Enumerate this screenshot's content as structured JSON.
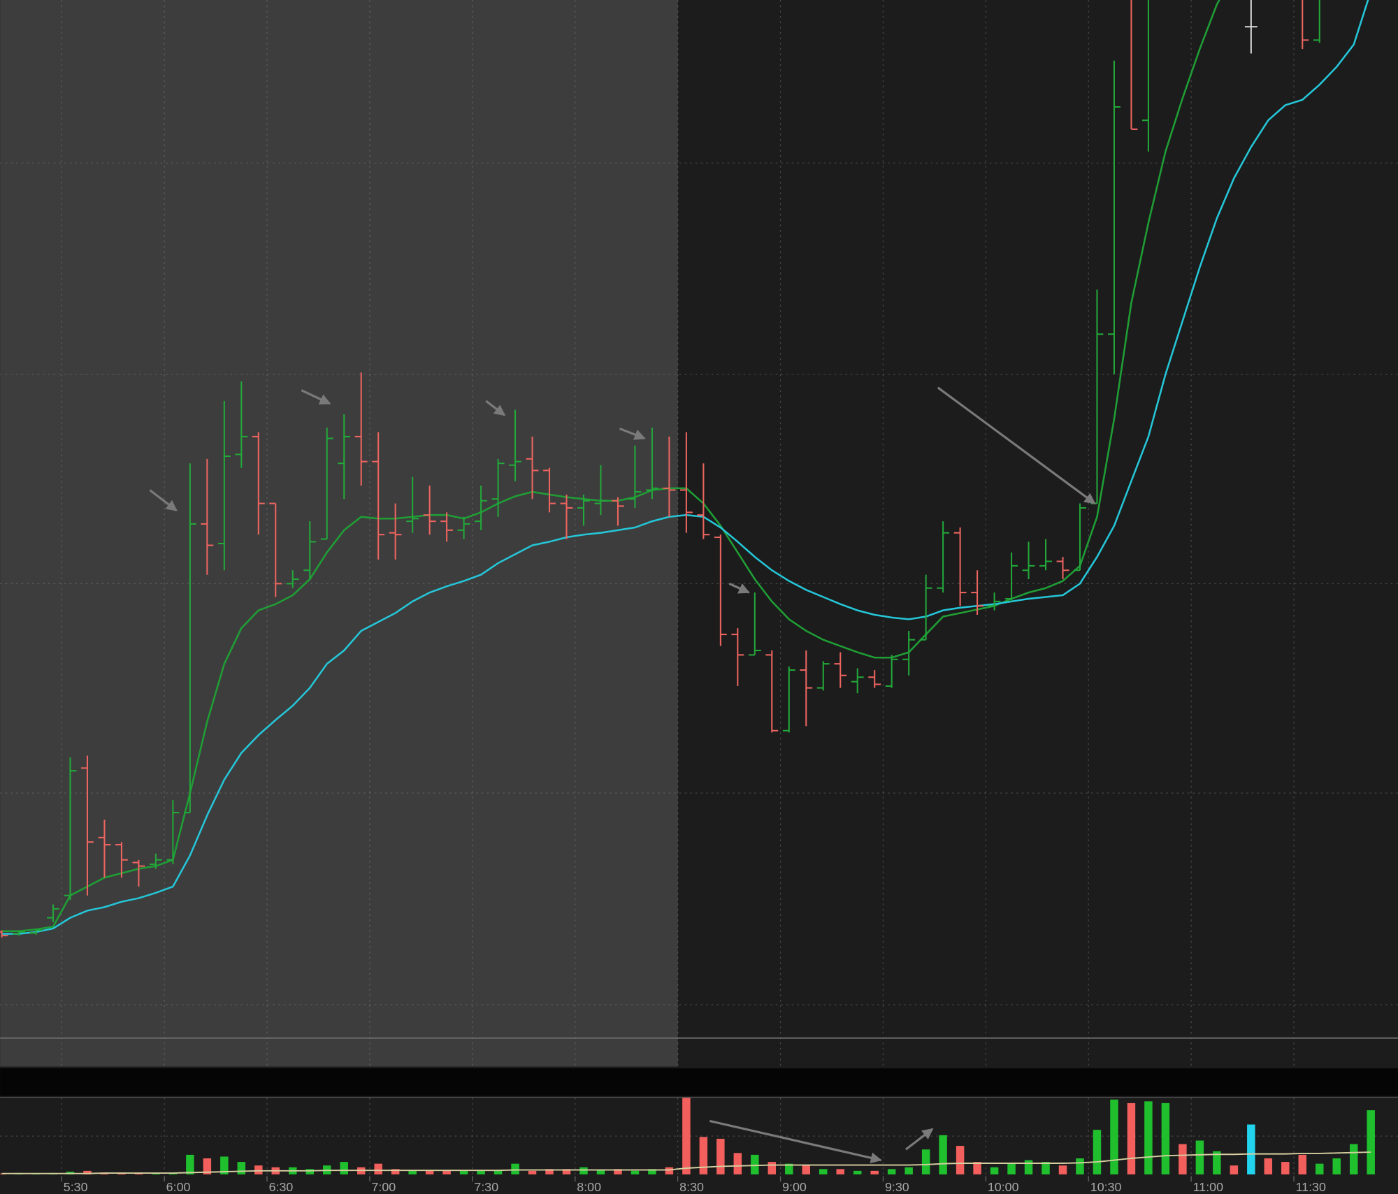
{
  "chart_data": {
    "type": "ohlc",
    "x": [
      310,
      315,
      320,
      325,
      330,
      335,
      340,
      345,
      350,
      355,
      360,
      365,
      370,
      375,
      380,
      385,
      390,
      395,
      400,
      405,
      410,
      415,
      420,
      425,
      430,
      435,
      440,
      445,
      450,
      455,
      460,
      465,
      470,
      475,
      480,
      485,
      490,
      495,
      500,
      505,
      510,
      515,
      520,
      525,
      530,
      535,
      540,
      545,
      550,
      555,
      560,
      565,
      570,
      575,
      580,
      585,
      590,
      595,
      600,
      605,
      610,
      615,
      620,
      625,
      630,
      635,
      640,
      645,
      650,
      655,
      660,
      665,
      670,
      675,
      680,
      685,
      690,
      695,
      700,
      705,
      710
    ],
    "open": [
      15.4,
      15.2,
      15.3,
      17.0,
      19.5,
      33.8,
      26.0,
      25.2,
      23.2,
      23.0,
      23.5,
      28.8,
      61.2,
      59.0,
      69.0,
      71.0,
      63.5,
      54.5,
      56.0,
      59.5,
      68.0,
      71.0,
      68.2,
      60.2,
      61.5,
      62.2,
      61.5,
      60.5,
      61.5,
      64.0,
      67.8,
      68.5,
      67.2,
      63.5,
      63.0,
      63.5,
      63.8,
      64.0,
      65.0,
      65.2,
      65.0,
      62.2,
      59.7,
      48.8,
      46.5,
      46.5,
      38.0,
      44.8,
      42.8,
      45.5,
      43.5,
      44.0,
      43.0,
      46.0,
      48.2,
      54.0,
      60.2,
      53.5,
      52.0,
      52.8,
      56.0,
      56.5,
      57.0,
      56.0,
      63.5,
      82.5,
      122.0,
      106.5,
      null,
      null,
      null,
      null,
      null,
      117.0,
      null,
      null,
      122.0,
      115.5,
      null,
      null,
      null
    ],
    "high": [
      15.6,
      15.6,
      15.7,
      18.5,
      35.0,
      35.2,
      28.0,
      25.5,
      23.5,
      24.2,
      30.2,
      68.0,
      68.5,
      75.0,
      77.2,
      71.5,
      63.5,
      56.0,
      61.5,
      72.0,
      73.5,
      78.2,
      71.5,
      63.5,
      66.5,
      65.5,
      62.5,
      62.0,
      65.5,
      68.5,
      74.0,
      71.0,
      67.5,
      64.5,
      64.5,
      67.8,
      64.2,
      70.0,
      72.0,
      71.0,
      71.5,
      68.0,
      60.0,
      49.5,
      53.5,
      47.0,
      45.2,
      47.0,
      45.8,
      46.8,
      45.0,
      44.8,
      46.5,
      49.2,
      55.5,
      61.5,
      60.8,
      56.0,
      53.5,
      58.0,
      59.2,
      59.5,
      57.5,
      63.5,
      87.5,
      113.2,
      123.0,
      123.0,
      null,
      null,
      null,
      null,
      null,
      121.0,
      null,
      null,
      124.0,
      124.0,
      null,
      null,
      null
    ],
    "low": [
      14.8,
      15.0,
      15.1,
      16.5,
      19.0,
      19.5,
      21.5,
      21.5,
      20.5,
      22.5,
      23.0,
      28.8,
      55.5,
      56.0,
      67.5,
      60.0,
      53.0,
      54.0,
      55.0,
      59.5,
      64.0,
      65.5,
      57.2,
      57.2,
      60.2,
      60.0,
      59.2,
      59.5,
      60.5,
      62.0,
      66.0,
      64.0,
      62.5,
      59.5,
      61.0,
      62.2,
      61.0,
      63.0,
      64.0,
      62.0,
      60.2,
      59.5,
      47.5,
      43.0,
      46.5,
      37.8,
      37.8,
      38.5,
      42.5,
      42.8,
      42.2,
      42.8,
      42.8,
      44.2,
      48.2,
      53.5,
      52.0,
      51.0,
      51.5,
      52.5,
      55.0,
      56.0,
      55.0,
      56.0,
      63.5,
      78.0,
      105.5,
      103.0,
      null,
      null,
      null,
      null,
      null,
      114.0,
      null,
      null,
      114.5,
      115.2,
      null,
      null,
      null
    ],
    "close": [
      15.0,
      15.4,
      15.6,
      18.0,
      33.5,
      25.5,
      25.2,
      23.5,
      22.8,
      23.5,
      28.8,
      61.2,
      58.8,
      68.8,
      71.0,
      63.5,
      54.5,
      55.0,
      59.2,
      70.8,
      71.0,
      68.2,
      60.0,
      60.0,
      61.8,
      61.5,
      60.5,
      61.2,
      63.8,
      68.0,
      68.2,
      67.2,
      63.5,
      63.0,
      63.8,
      63.8,
      63.2,
      64.8,
      65.2,
      65.0,
      62.5,
      60.0,
      48.8,
      46.5,
      47.0,
      38.0,
      44.8,
      42.8,
      45.5,
      44.2,
      44.0,
      43.2,
      46.0,
      48.2,
      54.0,
      60.2,
      53.5,
      52.0,
      52.5,
      56.5,
      56.5,
      57.0,
      56.0,
      63.0,
      82.5,
      108.0,
      105.5,
      121.0,
      null,
      null,
      null,
      null,
      null,
      117.0,
      null,
      null,
      115.5,
      122.0,
      null,
      null,
      null
    ],
    "up_color": "#23a83a",
    "down_color": "#ee6560",
    "flat_color": "#d8d8d8",
    "overlays": [
      {
        "color": "#1f9e35",
        "values": [
          15.5,
          15.5,
          15.7,
          16.0,
          19.5,
          20.5,
          21.5,
          22.0,
          22.5,
          22.8,
          23.5,
          31.0,
          39.0,
          45.5,
          49.5,
          51.5,
          52.2,
          53.2,
          55.0,
          58.0,
          60.5,
          62.0,
          61.8,
          61.8,
          62.0,
          62.2,
          62.2,
          61.8,
          62.5,
          63.5,
          64.3,
          64.8,
          64.5,
          64.2,
          64.0,
          63.8,
          63.8,
          64.2,
          65.0,
          65.2,
          65.2,
          63.5,
          61.0,
          58.0,
          55.0,
          52.5,
          50.5,
          49.2,
          48.2,
          47.5,
          46.8,
          46.2,
          46.2,
          46.8,
          48.8,
          50.8,
          51.2,
          51.6,
          52.0,
          52.8,
          53.5,
          54.0,
          54.8,
          56.5,
          62.0,
          73.0,
          86.0,
          95.0,
          103.0,
          109.0,
          114.5,
          119.5,
          123.0,
          null,
          null,
          null,
          null,
          null,
          null,
          null,
          null
        ]
      },
      {
        "color": "#25c6d8",
        "values": [
          15.2,
          15.2,
          15.4,
          15.8,
          17.0,
          17.8,
          18.2,
          18.8,
          19.2,
          19.8,
          20.5,
          24.0,
          28.5,
          32.5,
          35.5,
          37.5,
          39.2,
          40.8,
          42.8,
          45.5,
          47.0,
          49.2,
          50.2,
          51.2,
          52.5,
          53.5,
          54.2,
          54.8,
          55.5,
          56.8,
          57.8,
          58.8,
          59.2,
          59.7,
          60.0,
          60.2,
          60.5,
          60.8,
          61.5,
          62.0,
          62.2,
          62.0,
          60.8,
          59.2,
          57.5,
          56.0,
          54.8,
          53.8,
          53.0,
          52.2,
          51.5,
          51.0,
          50.7,
          50.5,
          50.8,
          51.5,
          51.8,
          52.0,
          52.2,
          52.5,
          52.8,
          53.0,
          53.2,
          54.5,
          57.5,
          61.0,
          66.0,
          71.0,
          78.0,
          84.0,
          90.0,
          95.5,
          100.0,
          103.5,
          106.5,
          108.2,
          108.8,
          110.5,
          112.5,
          115.0,
          121.0
        ]
      }
    ],
    "xlim": [
      312,
      720.4
    ],
    "ylim": [
      0,
      120
    ],
    "yticks": [
      7.25,
      31,
      54.5,
      78,
      101.7
    ],
    "xticks": [
      {
        "value": 330,
        "label": "5:30"
      },
      {
        "value": 360,
        "label": "6:00"
      },
      {
        "value": 390,
        "label": "6:30"
      },
      {
        "value": 420,
        "label": "7:00"
      },
      {
        "value": 450,
        "label": "7:30"
      },
      {
        "value": 480,
        "label": "8:00"
      },
      {
        "value": 510,
        "label": "8:30"
      },
      {
        "value": 540,
        "label": "9:00"
      },
      {
        "value": 570,
        "label": "9:30"
      },
      {
        "value": 600,
        "label": "10:00"
      },
      {
        "value": 630,
        "label": "10:30"
      },
      {
        "value": 660,
        "label": "11:00"
      },
      {
        "value": 690,
        "label": "11:30"
      }
    ],
    "grid": true,
    "extended_hours_end": 510,
    "extended_hours_color": "#3d3d3d",
    "volume": {
      "values": [
        1,
        1,
        1,
        1,
        3,
        4,
        2,
        2,
        2,
        1,
        2,
        22,
        18,
        20,
        14,
        10,
        8,
        8,
        6,
        10,
        14,
        8,
        12,
        6,
        4,
        4,
        4,
        4,
        5,
        4,
        12,
        4,
        6,
        6,
        8,
        5,
        6,
        4,
        6,
        8,
        86,
        42,
        40,
        24,
        22,
        14,
        12,
        10,
        6,
        6,
        4,
        4,
        6,
        8,
        28,
        44,
        32,
        14,
        8,
        12,
        16,
        14,
        10,
        18,
        50,
        84,
        80,
        82,
        80,
        34,
        38,
        26,
        10,
        56,
        18,
        14,
        22,
        12,
        18,
        34,
        72
      ],
      "colors": [
        "#f25f5c",
        "#1fbf2e",
        "#1fbf2e",
        "#1fbf2e",
        "#1fbf2e",
        "#f25f5c",
        "#f25f5c",
        "#f25f5c",
        "#f25f5c",
        "#1fbf2e",
        "#1fbf2e",
        "#1fbf2e",
        "#f25f5c",
        "#1fbf2e",
        "#1fbf2e",
        "#f25f5c",
        "#f25f5c",
        "#1fbf2e",
        "#1fbf2e",
        "#1fbf2e",
        "#1fbf2e",
        "#f25f5c",
        "#f25f5c",
        "#f25f5c",
        "#1fbf2e",
        "#f25f5c",
        "#f25f5c",
        "#1fbf2e",
        "#1fbf2e",
        "#1fbf2e",
        "#1fbf2e",
        "#f25f5c",
        "#f25f5c",
        "#f25f5c",
        "#1fbf2e",
        "#1fbf2e",
        "#f25f5c",
        "#1fbf2e",
        "#1fbf2e",
        "#f25f5c",
        "#f25f5c",
        "#f25f5c",
        "#f25f5c",
        "#f25f5c",
        "#1fbf2e",
        "#f25f5c",
        "#1fbf2e",
        "#f25f5c",
        "#1fbf2e",
        "#f25f5c",
        "#1fbf2e",
        "#f25f5c",
        "#1fbf2e",
        "#1fbf2e",
        "#1fbf2e",
        "#1fbf2e",
        "#f25f5c",
        "#f25f5c",
        "#1fbf2e",
        "#1fbf2e",
        "#1fbf2e",
        "#1fbf2e",
        "#f25f5c",
        "#1fbf2e",
        "#1fbf2e",
        "#1fbf2e",
        "#f25f5c",
        "#1fbf2e",
        "#1fbf2e",
        "#f25f5c",
        "#1fbf2e",
        "#1fbf2e",
        "#f25f5c",
        "#22d3ee",
        "#f25f5c",
        "#f25f5c",
        "#f25f5c",
        "#1fbf2e",
        "#1fbf2e",
        "#1fbf2e",
        "#1fbf2e"
      ],
      "average": {
        "color": "#d6cfa0",
        "values": [
          1,
          1,
          1,
          1,
          1,
          1,
          1.5,
          1.5,
          1.5,
          1.5,
          1.5,
          2,
          2.5,
          3,
          3.5,
          4,
          4,
          4,
          4,
          4.5,
          4.5,
          4.5,
          4.5,
          4.5,
          4.5,
          4.5,
          4.5,
          4.5,
          4.5,
          4.5,
          5,
          5,
          5,
          5,
          5,
          5,
          5,
          5,
          5,
          5,
          7,
          8,
          9,
          9.5,
          10,
          10.5,
          10.5,
          10.5,
          10.5,
          10.5,
          10.5,
          10.5,
          10.5,
          10.5,
          11,
          12,
          12.5,
          12.5,
          12.5,
          12.5,
          12.5,
          12.5,
          12.5,
          13,
          14,
          16,
          18,
          19.5,
          21,
          21.5,
          22,
          22.5,
          22.5,
          23,
          23,
          23,
          23.5,
          23.5,
          24,
          24.5,
          25
        ]
      },
      "ylim": [
        0,
        90
      ],
      "yticks": [
        43
      ]
    }
  }
}
